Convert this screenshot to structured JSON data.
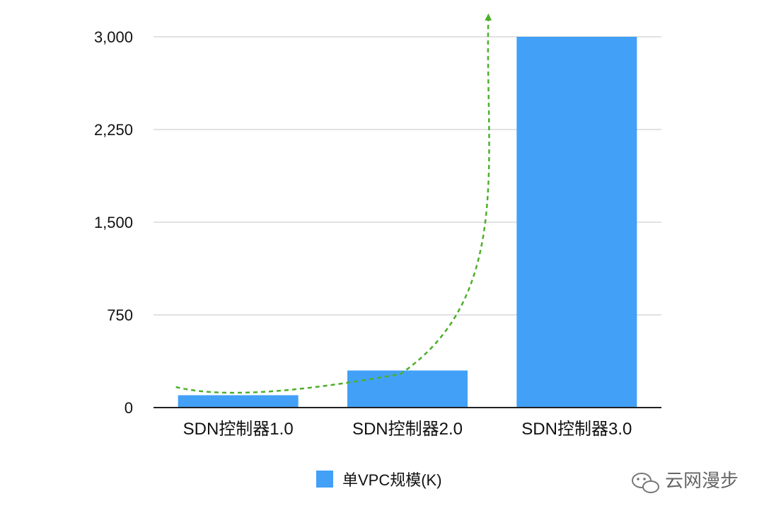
{
  "chart_data": {
    "type": "bar",
    "categories": [
      "SDN控制器1.0",
      "SDN控制器2.0",
      "SDN控制器3.0"
    ],
    "series": [
      {
        "name": "单VPC规模(K)",
        "values": [
          100,
          300,
          3000
        ]
      }
    ],
    "ylim": [
      0,
      3000
    ],
    "yticks": [
      0,
      750,
      1500,
      2250,
      3000
    ],
    "ytick_labels": [
      "0",
      "750",
      "1,500",
      "2,250",
      "3,000"
    ],
    "grid": true,
    "legend": "bottom-center",
    "bar_color": "#42a0f7",
    "trend_color": "#4caf2a"
  },
  "watermark": {
    "text": "云网漫步",
    "icon": "wechat-icon"
  }
}
